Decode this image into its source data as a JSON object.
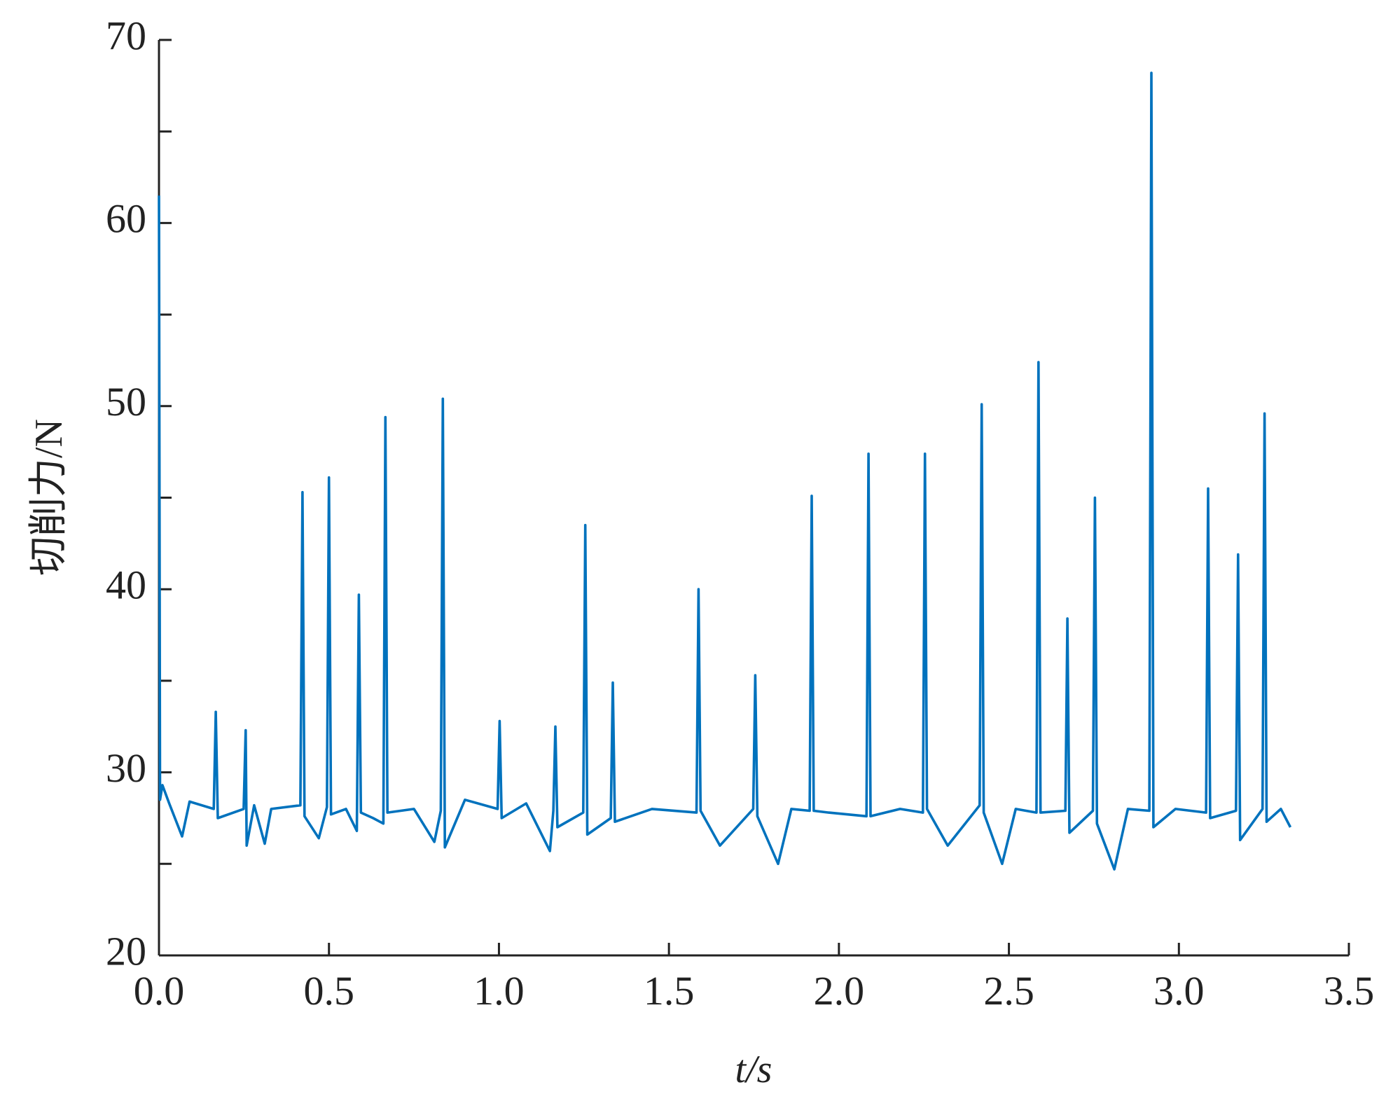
{
  "chart_data": {
    "type": "line",
    "xlabel": "t/s",
    "ylabel": "切削力/N",
    "xlim": [
      0,
      3.5
    ],
    "ylim": [
      20,
      70
    ],
    "xticks": [
      {
        "value": 0,
        "label": "0.0"
      },
      0.5,
      {
        "value": 1,
        "label": "1.0"
      },
      1.5,
      {
        "value": 2,
        "label": "2.0"
      },
      2.5,
      {
        "value": 3,
        "label": "3.0"
      },
      3.5
    ],
    "yticks": [
      20,
      30,
      40,
      50,
      60,
      70
    ],
    "yminorticks": [
      25,
      35,
      45,
      55,
      65
    ],
    "series": [
      {
        "color": "#0072bd",
        "x": [
          0,
          0.003,
          0.01,
          0.03,
          0.068,
          0.09,
          0.161,
          0.167,
          0.173,
          0.249,
          0.255,
          0.258,
          0.28,
          0.311,
          0.33,
          0.416,
          0.422,
          0.428,
          0.47,
          0.494,
          0.5,
          0.506,
          0.55,
          0.582,
          0.588,
          0.594,
          0.63,
          0.66,
          0.666,
          0.672,
          0.75,
          0.81,
          0.829,
          0.835,
          0.841,
          0.9,
          0.996,
          1.002,
          1.008,
          1.08,
          1.15,
          1.16,
          1.166,
          1.172,
          1.248,
          1.254,
          1.26,
          1.329,
          1.335,
          1.341,
          1.45,
          1.581,
          1.587,
          1.593,
          1.65,
          1.748,
          1.754,
          1.76,
          1.821,
          1.86,
          1.914,
          1.92,
          1.926,
          1.97,
          2.081,
          2.087,
          2.093,
          2.18,
          2.247,
          2.253,
          2.259,
          2.32,
          2.414,
          2.42,
          2.426,
          2.48,
          2.52,
          2.581,
          2.587,
          2.593,
          2.666,
          2.672,
          2.678,
          2.747,
          2.753,
          2.759,
          2.81,
          2.85,
          2.913,
          2.919,
          2.925,
          2.99,
          3.08,
          3.086,
          3.092,
          3.168,
          3.174,
          3.18,
          3.246,
          3.252,
          3.258,
          3.3,
          3.328
        ],
        "values": [
          61.5,
          28.5,
          29.3,
          28.3,
          26.5,
          28.4,
          28,
          33.3,
          27.5,
          28,
          32.3,
          26,
          28.2,
          26.1,
          28,
          28.2,
          45.3,
          27.6,
          26.4,
          28.1,
          46.1,
          27.7,
          28,
          26.8,
          39.7,
          27.8,
          27.5,
          27.2,
          49.4,
          27.8,
          28,
          26.2,
          27.9,
          50.4,
          25.9,
          28.5,
          28,
          32.8,
          27.5,
          28.3,
          25.7,
          27.9,
          32.5,
          27,
          27.8,
          43.5,
          26.6,
          27.5,
          34.9,
          27.3,
          28,
          27.8,
          40,
          27.9,
          26,
          28,
          35.3,
          27.6,
          25,
          28,
          27.9,
          45.1,
          27.9,
          27.8,
          27.6,
          47.4,
          27.6,
          28,
          27.8,
          47.4,
          28,
          26,
          28.2,
          50.1,
          27.8,
          25,
          28,
          27.8,
          52.4,
          27.8,
          27.9,
          38.4,
          26.7,
          27.9,
          45,
          27.2,
          24.7,
          28,
          27.9,
          68.2,
          27,
          28,
          27.8,
          45.5,
          27.5,
          27.9,
          41.9,
          26.3,
          28,
          49.6,
          27.3,
          28,
          27.0
        ]
      }
    ]
  }
}
